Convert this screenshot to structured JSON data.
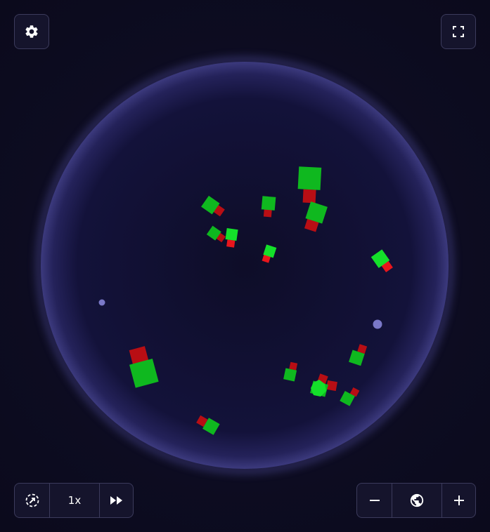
{
  "colors": {
    "background": "#0d0c20",
    "world_fill": "#0f0e2a",
    "world_glow": "#5c5aa8",
    "head_green": "#0fb81f",
    "head_bright_green": "#14e02a",
    "tail_red": "#b80e14",
    "tail_bright_red": "#e8161c",
    "food": "#7a78c8",
    "control_bg": "#15142c",
    "control_border": "#3c3b5c"
  },
  "top_controls": {
    "settings_icon": "gear-icon",
    "fullscreen_icon": "fullscreen-icon"
  },
  "playback": {
    "reset_icon": "restart-icon",
    "speed_label": "1x",
    "fast_forward_icon": "fast-forward-icon"
  },
  "zoom": {
    "zoom_out_icon": "minus-icon",
    "globe_icon": "globe-icon",
    "zoom_in_icon": "plus-icon"
  }
}
